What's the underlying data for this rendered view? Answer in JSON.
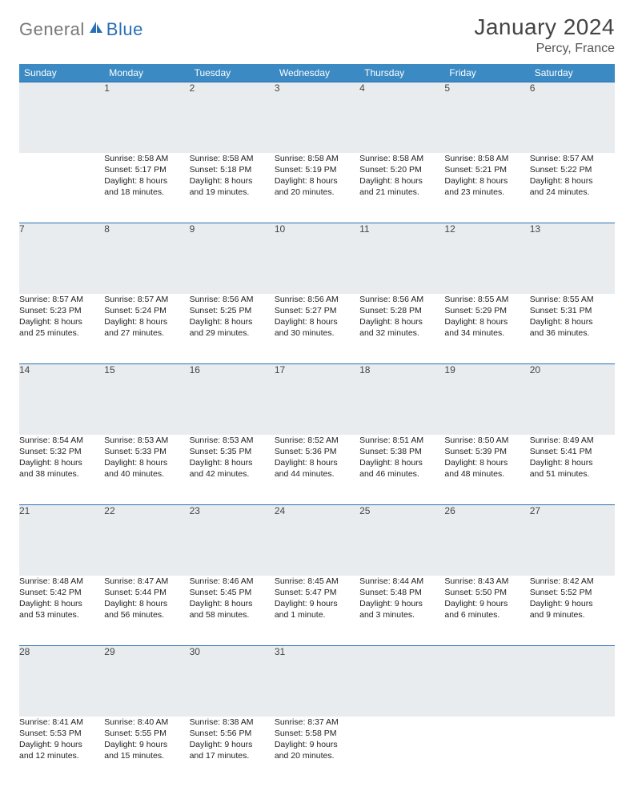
{
  "logo": {
    "part1": "General",
    "part2": "Blue"
  },
  "title": "January 2024",
  "location": "Percy, France",
  "colors": {
    "header_bg": "#3b8ac4",
    "header_text": "#ffffff",
    "daynum_bg": "#e9ecef",
    "daynum_border": "#2a6fb5",
    "body_text": "#222222",
    "page_bg": "#ffffff"
  },
  "weekdays": [
    "Sunday",
    "Monday",
    "Tuesday",
    "Wednesday",
    "Thursday",
    "Friday",
    "Saturday"
  ],
  "weeks": [
    [
      {
        "num": "",
        "lines": [
          "",
          "",
          "",
          ""
        ]
      },
      {
        "num": "1",
        "lines": [
          "Sunrise: 8:58 AM",
          "Sunset: 5:17 PM",
          "Daylight: 8 hours",
          "and 18 minutes."
        ]
      },
      {
        "num": "2",
        "lines": [
          "Sunrise: 8:58 AM",
          "Sunset: 5:18 PM",
          "Daylight: 8 hours",
          "and 19 minutes."
        ]
      },
      {
        "num": "3",
        "lines": [
          "Sunrise: 8:58 AM",
          "Sunset: 5:19 PM",
          "Daylight: 8 hours",
          "and 20 minutes."
        ]
      },
      {
        "num": "4",
        "lines": [
          "Sunrise: 8:58 AM",
          "Sunset: 5:20 PM",
          "Daylight: 8 hours",
          "and 21 minutes."
        ]
      },
      {
        "num": "5",
        "lines": [
          "Sunrise: 8:58 AM",
          "Sunset: 5:21 PM",
          "Daylight: 8 hours",
          "and 23 minutes."
        ]
      },
      {
        "num": "6",
        "lines": [
          "Sunrise: 8:57 AM",
          "Sunset: 5:22 PM",
          "Daylight: 8 hours",
          "and 24 minutes."
        ]
      }
    ],
    [
      {
        "num": "7",
        "lines": [
          "Sunrise: 8:57 AM",
          "Sunset: 5:23 PM",
          "Daylight: 8 hours",
          "and 25 minutes."
        ]
      },
      {
        "num": "8",
        "lines": [
          "Sunrise: 8:57 AM",
          "Sunset: 5:24 PM",
          "Daylight: 8 hours",
          "and 27 minutes."
        ]
      },
      {
        "num": "9",
        "lines": [
          "Sunrise: 8:56 AM",
          "Sunset: 5:25 PM",
          "Daylight: 8 hours",
          "and 29 minutes."
        ]
      },
      {
        "num": "10",
        "lines": [
          "Sunrise: 8:56 AM",
          "Sunset: 5:27 PM",
          "Daylight: 8 hours",
          "and 30 minutes."
        ]
      },
      {
        "num": "11",
        "lines": [
          "Sunrise: 8:56 AM",
          "Sunset: 5:28 PM",
          "Daylight: 8 hours",
          "and 32 minutes."
        ]
      },
      {
        "num": "12",
        "lines": [
          "Sunrise: 8:55 AM",
          "Sunset: 5:29 PM",
          "Daylight: 8 hours",
          "and 34 minutes."
        ]
      },
      {
        "num": "13",
        "lines": [
          "Sunrise: 8:55 AM",
          "Sunset: 5:31 PM",
          "Daylight: 8 hours",
          "and 36 minutes."
        ]
      }
    ],
    [
      {
        "num": "14",
        "lines": [
          "Sunrise: 8:54 AM",
          "Sunset: 5:32 PM",
          "Daylight: 8 hours",
          "and 38 minutes."
        ]
      },
      {
        "num": "15",
        "lines": [
          "Sunrise: 8:53 AM",
          "Sunset: 5:33 PM",
          "Daylight: 8 hours",
          "and 40 minutes."
        ]
      },
      {
        "num": "16",
        "lines": [
          "Sunrise: 8:53 AM",
          "Sunset: 5:35 PM",
          "Daylight: 8 hours",
          "and 42 minutes."
        ]
      },
      {
        "num": "17",
        "lines": [
          "Sunrise: 8:52 AM",
          "Sunset: 5:36 PM",
          "Daylight: 8 hours",
          "and 44 minutes."
        ]
      },
      {
        "num": "18",
        "lines": [
          "Sunrise: 8:51 AM",
          "Sunset: 5:38 PM",
          "Daylight: 8 hours",
          "and 46 minutes."
        ]
      },
      {
        "num": "19",
        "lines": [
          "Sunrise: 8:50 AM",
          "Sunset: 5:39 PM",
          "Daylight: 8 hours",
          "and 48 minutes."
        ]
      },
      {
        "num": "20",
        "lines": [
          "Sunrise: 8:49 AM",
          "Sunset: 5:41 PM",
          "Daylight: 8 hours",
          "and 51 minutes."
        ]
      }
    ],
    [
      {
        "num": "21",
        "lines": [
          "Sunrise: 8:48 AM",
          "Sunset: 5:42 PM",
          "Daylight: 8 hours",
          "and 53 minutes."
        ]
      },
      {
        "num": "22",
        "lines": [
          "Sunrise: 8:47 AM",
          "Sunset: 5:44 PM",
          "Daylight: 8 hours",
          "and 56 minutes."
        ]
      },
      {
        "num": "23",
        "lines": [
          "Sunrise: 8:46 AM",
          "Sunset: 5:45 PM",
          "Daylight: 8 hours",
          "and 58 minutes."
        ]
      },
      {
        "num": "24",
        "lines": [
          "Sunrise: 8:45 AM",
          "Sunset: 5:47 PM",
          "Daylight: 9 hours",
          "and 1 minute."
        ]
      },
      {
        "num": "25",
        "lines": [
          "Sunrise: 8:44 AM",
          "Sunset: 5:48 PM",
          "Daylight: 9 hours",
          "and 3 minutes."
        ]
      },
      {
        "num": "26",
        "lines": [
          "Sunrise: 8:43 AM",
          "Sunset: 5:50 PM",
          "Daylight: 9 hours",
          "and 6 minutes."
        ]
      },
      {
        "num": "27",
        "lines": [
          "Sunrise: 8:42 AM",
          "Sunset: 5:52 PM",
          "Daylight: 9 hours",
          "and 9 minutes."
        ]
      }
    ],
    [
      {
        "num": "28",
        "lines": [
          "Sunrise: 8:41 AM",
          "Sunset: 5:53 PM",
          "Daylight: 9 hours",
          "and 12 minutes."
        ]
      },
      {
        "num": "29",
        "lines": [
          "Sunrise: 8:40 AM",
          "Sunset: 5:55 PM",
          "Daylight: 9 hours",
          "and 15 minutes."
        ]
      },
      {
        "num": "30",
        "lines": [
          "Sunrise: 8:38 AM",
          "Sunset: 5:56 PM",
          "Daylight: 9 hours",
          "and 17 minutes."
        ]
      },
      {
        "num": "31",
        "lines": [
          "Sunrise: 8:37 AM",
          "Sunset: 5:58 PM",
          "Daylight: 9 hours",
          "and 20 minutes."
        ]
      },
      {
        "num": "",
        "lines": [
          "",
          "",
          "",
          ""
        ]
      },
      {
        "num": "",
        "lines": [
          "",
          "",
          "",
          ""
        ]
      },
      {
        "num": "",
        "lines": [
          "",
          "",
          "",
          ""
        ]
      }
    ]
  ]
}
